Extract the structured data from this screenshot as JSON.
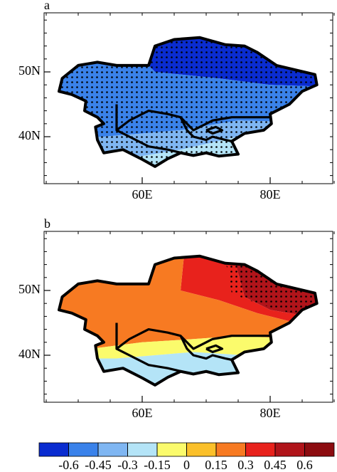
{
  "panels": [
    {
      "label": "a",
      "yticks": [
        {
          "value": 50,
          "label": "50N"
        },
        {
          "value": 40,
          "label": "40N"
        }
      ],
      "xticks": [
        {
          "value": 60,
          "label": "60E"
        },
        {
          "value": 80,
          "label": "80E"
        }
      ]
    },
    {
      "label": "b",
      "yticks": [
        {
          "value": 50,
          "label": "50N"
        },
        {
          "value": 40,
          "label": "40N"
        }
      ],
      "xticks": [
        {
          "value": 60,
          "label": "60E"
        },
        {
          "value": 80,
          "label": "80E"
        }
      ]
    }
  ],
  "colorbar": {
    "ticks": [
      -0.6,
      -0.45,
      -0.3,
      -0.15,
      0,
      0.15,
      0.3,
      0.45,
      0.6
    ],
    "colors": [
      "#0a2cd0",
      "#3a82ea",
      "#7fb6f2",
      "#b4e4f7",
      "#fbfb6c",
      "#fbc02a",
      "#f77a22",
      "#e8221c",
      "#b0141a",
      "#8c0c10"
    ]
  }
}
